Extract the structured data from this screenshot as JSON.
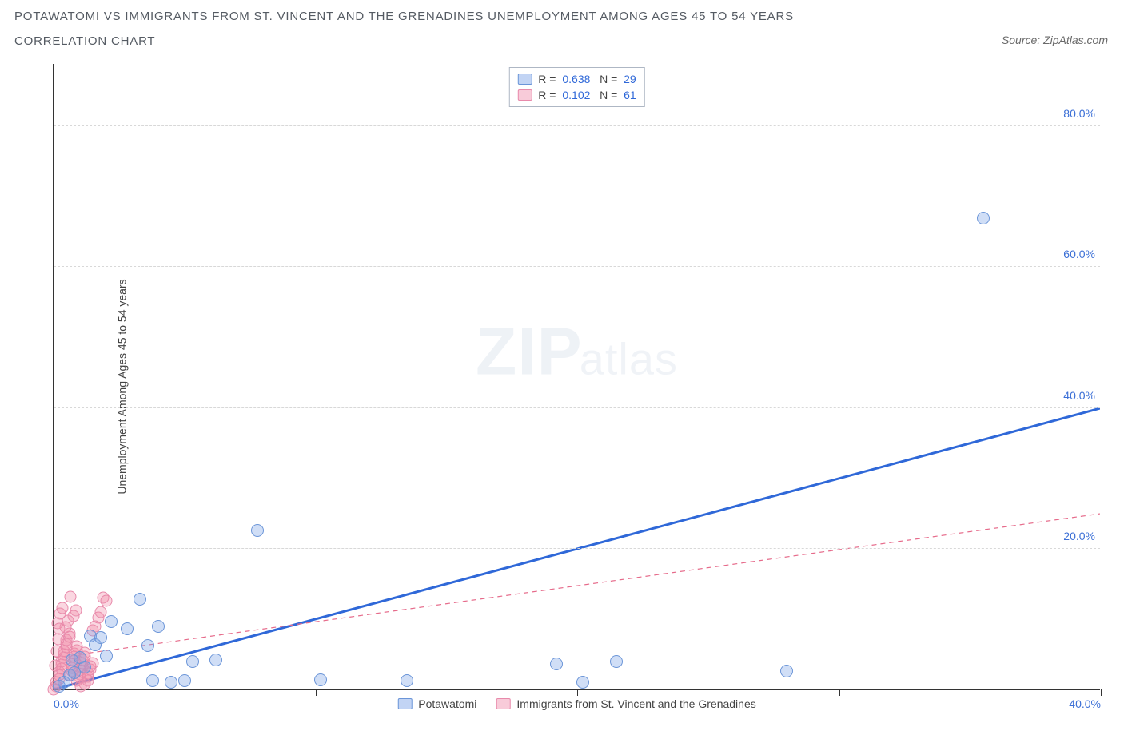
{
  "title_line1": "POTAWATOMI VS IMMIGRANTS FROM ST. VINCENT AND THE GRENADINES UNEMPLOYMENT AMONG AGES 45 TO 54 YEARS",
  "title_line2": "CORRELATION CHART",
  "source_label": "Source: ZipAtlas.com",
  "y_axis_label": "Unemployment Among Ages 45 to 54 years",
  "watermark_big": "ZIP",
  "watermark_small": "atlas",
  "chart": {
    "type": "scatter",
    "xlim": [
      0,
      40
    ],
    "ylim": [
      0,
      89
    ],
    "x_ticks": [
      0,
      10,
      20,
      30,
      40
    ],
    "x_tick_labels": {
      "0": "0.0%",
      "40": "40.0%"
    },
    "y_grid": [
      20,
      40,
      60,
      80
    ],
    "y_tick_labels": {
      "20": "20.0%",
      "40": "40.0%",
      "60": "60.0%",
      "80": "80.0%"
    },
    "background_color": "#ffffff",
    "grid_color": "#d8d8d8",
    "axis_color": "#333333",
    "label_color": "#3b6fd6",
    "marker_size": 16,
    "series": [
      {
        "name": "Potawatomi",
        "color_fill": "rgba(120,160,230,0.35)",
        "color_stroke": "#6b95d8",
        "R": "0.638",
        "N": "29",
        "trend": {
          "x1": 0,
          "y1": 0,
          "x2": 40,
          "y2": 40,
          "stroke": "#2f68d8",
          "width": 3,
          "dash": "none"
        },
        "points": [
          [
            0.2,
            0.5
          ],
          [
            0.4,
            1.0
          ],
          [
            0.6,
            2.0
          ],
          [
            0.8,
            2.4
          ],
          [
            0.7,
            4.2
          ],
          [
            1.0,
            4.5
          ],
          [
            1.2,
            3.2
          ],
          [
            1.4,
            7.6
          ],
          [
            1.6,
            6.4
          ],
          [
            1.8,
            7.4
          ],
          [
            2.0,
            4.8
          ],
          [
            2.2,
            9.6
          ],
          [
            2.8,
            8.6
          ],
          [
            3.3,
            12.8
          ],
          [
            3.6,
            6.2
          ],
          [
            3.8,
            1.2
          ],
          [
            4.0,
            9.0
          ],
          [
            4.5,
            1.0
          ],
          [
            5.0,
            1.2
          ],
          [
            5.3,
            4.0
          ],
          [
            6.2,
            4.2
          ],
          [
            7.8,
            22.6
          ],
          [
            10.2,
            1.4
          ],
          [
            13.5,
            1.2
          ],
          [
            19.2,
            3.6
          ],
          [
            20.2,
            1.0
          ],
          [
            21.5,
            4.0
          ],
          [
            28.0,
            2.6
          ],
          [
            35.5,
            67.0
          ]
        ]
      },
      {
        "name": "Immigrants from St. Vincent and the Grenadines",
        "color_fill": "rgba(240,140,170,0.35)",
        "color_stroke": "#e88aab",
        "R": "0.102",
        "N": "61",
        "trend": {
          "x1": 0,
          "y1": 4.5,
          "x2": 40,
          "y2": 25,
          "stroke": "#e66a8a",
          "width": 1.2,
          "dash": "6 5"
        },
        "points": [
          [
            0.0,
            0.0
          ],
          [
            0.1,
            0.5
          ],
          [
            0.1,
            1.0
          ],
          [
            0.2,
            1.5
          ],
          [
            0.2,
            2.0
          ],
          [
            0.2,
            2.5
          ],
          [
            0.3,
            3.0
          ],
          [
            0.3,
            3.5
          ],
          [
            0.3,
            4.0
          ],
          [
            0.4,
            4.5
          ],
          [
            0.4,
            5.0
          ],
          [
            0.4,
            5.5
          ],
          [
            0.5,
            6.0
          ],
          [
            0.5,
            6.5
          ],
          [
            0.5,
            7.0
          ],
          [
            0.6,
            7.5
          ],
          [
            0.6,
            8.0
          ],
          [
            0.6,
            2.1
          ],
          [
            0.7,
            2.6
          ],
          [
            0.7,
            3.1
          ],
          [
            0.7,
            3.6
          ],
          [
            0.8,
            4.1
          ],
          [
            0.8,
            4.6
          ],
          [
            0.8,
            5.1
          ],
          [
            0.9,
            5.6
          ],
          [
            0.9,
            6.1
          ],
          [
            0.9,
            1.2
          ],
          [
            1.0,
            1.7
          ],
          [
            1.0,
            2.2
          ],
          [
            1.0,
            2.7
          ],
          [
            1.1,
            3.2
          ],
          [
            1.1,
            3.7
          ],
          [
            1.1,
            4.2
          ],
          [
            1.2,
            4.7
          ],
          [
            1.2,
            5.2
          ],
          [
            1.2,
            0.8
          ],
          [
            1.3,
            1.3
          ],
          [
            1.3,
            1.8
          ],
          [
            1.3,
            2.3
          ],
          [
            1.4,
            2.8
          ],
          [
            1.4,
            3.3
          ],
          [
            1.5,
            3.8
          ],
          [
            1.5,
            8.4
          ],
          [
            1.6,
            9.0
          ],
          [
            1.7,
            10.2
          ],
          [
            1.8,
            11.0
          ],
          [
            1.9,
            13.0
          ],
          [
            2.0,
            12.6
          ],
          [
            0.15,
            9.4
          ],
          [
            0.25,
            10.8
          ],
          [
            0.35,
            11.6
          ],
          [
            0.45,
            8.8
          ],
          [
            0.55,
            9.8
          ],
          [
            0.65,
            13.2
          ],
          [
            0.75,
            10.4
          ],
          [
            0.85,
            11.2
          ],
          [
            0.05,
            3.4
          ],
          [
            0.12,
            5.4
          ],
          [
            0.18,
            7.2
          ],
          [
            0.22,
            8.6
          ],
          [
            1.05,
            0.4
          ]
        ]
      }
    ],
    "legend_bottom": [
      {
        "swatch": "blue",
        "label": "Potawatomi"
      },
      {
        "swatch": "pink",
        "label": "Immigrants from St. Vincent and the Grenadines"
      }
    ]
  }
}
